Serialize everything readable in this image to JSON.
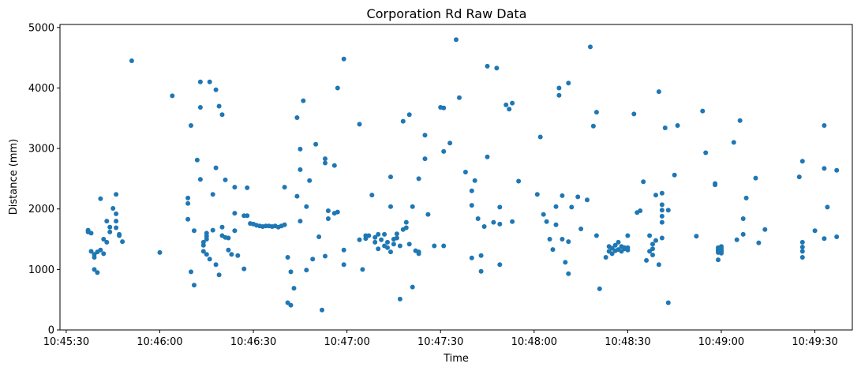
{
  "chart_data": {
    "type": "scatter",
    "title": "Corporation Rd Raw Data",
    "xlabel": "Time",
    "ylabel": "Distance (mm)",
    "marker_color": "#1f77b4",
    "x_ticks": [
      "10:45:30",
      "10:46:00",
      "10:46:30",
      "10:47:00",
      "10:47:30",
      "10:48:00",
      "10:48:30",
      "10:49:00",
      "10:49:30"
    ],
    "y_ticks": [
      "0",
      "1000",
      "2000",
      "3000",
      "4000",
      "5000"
    ],
    "xlim": [
      "10:45:28",
      "10:49:42"
    ],
    "ylim": [
      0,
      5050
    ],
    "points": [
      [
        "10:45:37",
        1650
      ],
      [
        "10:45:37",
        1620
      ],
      [
        "10:45:38",
        1600
      ],
      [
        "10:45:38",
        1300
      ],
      [
        "10:45:39",
        1200
      ],
      [
        "10:45:39",
        1000
      ],
      [
        "10:45:39",
        1250
      ],
      [
        "10:45:40",
        1290
      ],
      [
        "10:45:40",
        950
      ],
      [
        "10:45:41",
        2170
      ],
      [
        "10:45:41",
        1320
      ],
      [
        "10:45:42",
        1500
      ],
      [
        "10:45:42",
        1260
      ],
      [
        "10:45:43",
        1450
      ],
      [
        "10:45:43",
        1800
      ],
      [
        "10:45:44",
        1700
      ],
      [
        "10:45:44",
        1620
      ],
      [
        "10:45:45",
        2010
      ],
      [
        "10:45:46",
        1800
      ],
      [
        "10:45:46",
        1920
      ],
      [
        "10:45:46",
        2240
      ],
      [
        "10:45:46",
        1690
      ],
      [
        "10:45:47",
        1580
      ],
      [
        "10:45:47",
        1560
      ],
      [
        "10:45:48",
        1460
      ],
      [
        "10:45:51",
        4450
      ],
      [
        "10:46:00",
        1280
      ],
      [
        "10:46:04",
        3870
      ],
      [
        "10:46:09",
        2180
      ],
      [
        "10:46:09",
        2090
      ],
      [
        "10:46:09",
        1830
      ],
      [
        "10:46:10",
        3380
      ],
      [
        "10:46:10",
        960
      ],
      [
        "10:46:11",
        740
      ],
      [
        "10:46:11",
        1640
      ],
      [
        "10:46:12",
        2810
      ],
      [
        "10:46:13",
        4100
      ],
      [
        "10:46:13",
        3680
      ],
      [
        "10:46:13",
        2490
      ],
      [
        "10:46:14",
        1400
      ],
      [
        "10:46:14",
        1300
      ],
      [
        "10:46:14",
        1450
      ],
      [
        "10:46:15",
        1600
      ],
      [
        "10:46:15",
        1500
      ],
      [
        "10:46:15",
        1550
      ],
      [
        "10:46:15",
        1250
      ],
      [
        "10:46:16",
        1170
      ],
      [
        "10:46:16",
        4100
      ],
      [
        "10:46:17",
        2240
      ],
      [
        "10:46:17",
        1650
      ],
      [
        "10:46:18",
        3970
      ],
      [
        "10:46:18",
        2680
      ],
      [
        "10:46:18",
        1080
      ],
      [
        "10:46:19",
        3700
      ],
      [
        "10:46:19",
        910
      ],
      [
        "10:46:20",
        3560
      ],
      [
        "10:46:20",
        1700
      ],
      [
        "10:46:20",
        1560
      ],
      [
        "10:46:21",
        2480
      ],
      [
        "10:46:21",
        1530
      ],
      [
        "10:46:22",
        1320
      ],
      [
        "10:46:22",
        1520
      ],
      [
        "10:46:23",
        1250
      ],
      [
        "10:46:24",
        2360
      ],
      [
        "10:46:24",
        1930
      ],
      [
        "10:46:24",
        1640
      ],
      [
        "10:46:25",
        1230
      ],
      [
        "10:46:27",
        1890
      ],
      [
        "10:46:27",
        1010
      ],
      [
        "10:46:28",
        1890
      ],
      [
        "10:46:28",
        2350
      ],
      [
        "10:46:29",
        1760
      ],
      [
        "10:46:30",
        1750
      ],
      [
        "10:46:31",
        1730
      ],
      [
        "10:46:32",
        1720
      ],
      [
        "10:46:33",
        1710
      ],
      [
        "10:46:34",
        1720
      ],
      [
        "10:46:35",
        1720
      ],
      [
        "10:46:36",
        1710
      ],
      [
        "10:46:37",
        1720
      ],
      [
        "10:46:38",
        1700
      ],
      [
        "10:46:39",
        1720
      ],
      [
        "10:46:40",
        1740
      ],
      [
        "10:46:40",
        2360
      ],
      [
        "10:46:41",
        1200
      ],
      [
        "10:46:41",
        450
      ],
      [
        "10:46:42",
        410
      ],
      [
        "10:46:42",
        960
      ],
      [
        "10:46:43",
        690
      ],
      [
        "10:46:44",
        3510
      ],
      [
        "10:46:44",
        2210
      ],
      [
        "10:46:45",
        2990
      ],
      [
        "10:46:45",
        2650
      ],
      [
        "10:46:45",
        1800
      ],
      [
        "10:46:46",
        3790
      ],
      [
        "10:46:47",
        2040
      ],
      [
        "10:46:47",
        990
      ],
      [
        "10:46:48",
        2470
      ],
      [
        "10:46:49",
        1170
      ],
      [
        "10:46:50",
        3070
      ],
      [
        "10:46:51",
        1540
      ],
      [
        "10:46:52",
        330
      ],
      [
        "10:46:53",
        2830
      ],
      [
        "10:46:53",
        2760
      ],
      [
        "10:46:53",
        1220
      ],
      [
        "10:46:54",
        1970
      ],
      [
        "10:46:54",
        1840
      ],
      [
        "10:46:56",
        2720
      ],
      [
        "10:46:56",
        1930
      ],
      [
        "10:46:57",
        1950
      ],
      [
        "10:46:57",
        4000
      ],
      [
        "10:46:59",
        4480
      ],
      [
        "10:46:59",
        1320
      ],
      [
        "10:46:59",
        1080
      ],
      [
        "10:47:04",
        3400
      ],
      [
        "10:47:04",
        1490
      ],
      [
        "10:47:05",
        1000
      ],
      [
        "10:47:06",
        1510
      ],
      [
        "10:47:06",
        1560
      ],
      [
        "10:47:07",
        1560
      ],
      [
        "10:47:08",
        2230
      ],
      [
        "10:47:09",
        1450
      ],
      [
        "10:47:09",
        1530
      ],
      [
        "10:47:10",
        1580
      ],
      [
        "10:47:10",
        1340
      ],
      [
        "10:47:11",
        1490
      ],
      [
        "10:47:12",
        1390
      ],
      [
        "10:47:12",
        1580
      ],
      [
        "10:47:13",
        1360
      ],
      [
        "10:47:13",
        1450
      ],
      [
        "10:47:14",
        1290
      ],
      [
        "10:47:14",
        2530
      ],
      [
        "10:47:14",
        2040
      ],
      [
        "10:47:15",
        1420
      ],
      [
        "10:47:15",
        1500
      ],
      [
        "10:47:16",
        1520
      ],
      [
        "10:47:16",
        1590
      ],
      [
        "10:47:17",
        1390
      ],
      [
        "10:47:17",
        510
      ],
      [
        "10:47:18",
        3450
      ],
      [
        "10:47:18",
        1660
      ],
      [
        "10:47:19",
        1780
      ],
      [
        "10:47:19",
        1690
      ],
      [
        "10:47:20",
        3560
      ],
      [
        "10:47:20",
        1420
      ],
      [
        "10:47:21",
        710
      ],
      [
        "10:47:21",
        2040
      ],
      [
        "10:47:22",
        1310
      ],
      [
        "10:47:23",
        2500
      ],
      [
        "10:47:23",
        1290
      ],
      [
        "10:47:23",
        1260
      ],
      [
        "10:47:25",
        3220
      ],
      [
        "10:47:25",
        2830
      ],
      [
        "10:47:26",
        1910
      ],
      [
        "10:47:28",
        1390
      ],
      [
        "10:47:30",
        3680
      ],
      [
        "10:47:31",
        3670
      ],
      [
        "10:47:31",
        2950
      ],
      [
        "10:47:31",
        1390
      ],
      [
        "10:47:33",
        3090
      ],
      [
        "10:47:35",
        4800
      ],
      [
        "10:47:36",
        3840
      ],
      [
        "10:47:38",
        2610
      ],
      [
        "10:47:40",
        2300
      ],
      [
        "10:47:40",
        2060
      ],
      [
        "10:47:40",
        1190
      ],
      [
        "10:47:41",
        2470
      ],
      [
        "10:47:42",
        1840
      ],
      [
        "10:47:43",
        1230
      ],
      [
        "10:47:43",
        970
      ],
      [
        "10:47:44",
        1710
      ],
      [
        "10:47:45",
        2860
      ],
      [
        "10:47:45",
        4360
      ],
      [
        "10:47:47",
        1780
      ],
      [
        "10:47:48",
        4330
      ],
      [
        "10:47:49",
        1750
      ],
      [
        "10:47:49",
        2030
      ],
      [
        "10:47:49",
        1080
      ],
      [
        "10:47:51",
        3720
      ],
      [
        "10:47:52",
        3650
      ],
      [
        "10:47:53",
        3750
      ],
      [
        "10:47:53",
        1790
      ],
      [
        "10:47:55",
        2460
      ],
      [
        "10:48:01",
        2240
      ],
      [
        "10:48:02",
        3190
      ],
      [
        "10:48:03",
        1910
      ],
      [
        "10:48:04",
        1790
      ],
      [
        "10:48:05",
        1500
      ],
      [
        "10:48:06",
        1330
      ],
      [
        "10:48:07",
        2040
      ],
      [
        "10:48:07",
        1740
      ],
      [
        "10:48:08",
        4000
      ],
      [
        "10:48:08",
        3880
      ],
      [
        "10:48:09",
        2220
      ],
      [
        "10:48:09",
        1500
      ],
      [
        "10:48:10",
        1120
      ],
      [
        "10:48:11",
        930
      ],
      [
        "10:48:11",
        4080
      ],
      [
        "10:48:11",
        1460
      ],
      [
        "10:48:12",
        2030
      ],
      [
        "10:48:14",
        2200
      ],
      [
        "10:48:15",
        1670
      ],
      [
        "10:48:17",
        2150
      ],
      [
        "10:48:18",
        4680
      ],
      [
        "10:48:19",
        3370
      ],
      [
        "10:48:20",
        3600
      ],
      [
        "10:48:20",
        1560
      ],
      [
        "10:48:21",
        680
      ],
      [
        "10:48:23",
        1200
      ],
      [
        "10:48:24",
        1300
      ],
      [
        "10:48:24",
        1380
      ],
      [
        "10:48:25",
        1260
      ],
      [
        "10:48:25",
        1350
      ],
      [
        "10:48:26",
        1310
      ],
      [
        "10:48:26",
        1400
      ],
      [
        "10:48:27",
        1330
      ],
      [
        "10:48:27",
        1450
      ],
      [
        "10:48:28",
        1380
      ],
      [
        "10:48:28",
        1300
      ],
      [
        "10:48:29",
        1360
      ],
      [
        "10:48:29",
        1340
      ],
      [
        "10:48:30",
        1360
      ],
      [
        "10:48:30",
        1320
      ],
      [
        "10:48:30",
        1560
      ],
      [
        "10:48:32",
        3570
      ],
      [
        "10:48:33",
        1940
      ],
      [
        "10:48:34",
        1970
      ],
      [
        "10:48:35",
        2450
      ],
      [
        "10:48:36",
        1150
      ],
      [
        "10:48:37",
        1560
      ],
      [
        "10:48:37",
        1300
      ],
      [
        "10:48:38",
        1340
      ],
      [
        "10:48:38",
        1240
      ],
      [
        "10:48:38",
        1420
      ],
      [
        "10:48:39",
        1480
      ],
      [
        "10:48:39",
        2230
      ],
      [
        "10:48:40",
        1080
      ],
      [
        "10:48:40",
        3940
      ],
      [
        "10:48:41",
        2260
      ],
      [
        "10:48:41",
        2070
      ],
      [
        "10:48:41",
        1980
      ],
      [
        "10:48:41",
        1880
      ],
      [
        "10:48:41",
        1780
      ],
      [
        "10:48:41",
        1520
      ],
      [
        "10:48:42",
        3340
      ],
      [
        "10:48:43",
        450
      ],
      [
        "10:48:43",
        1980
      ],
      [
        "10:48:45",
        2560
      ],
      [
        "10:48:46",
        3380
      ],
      [
        "10:48:52",
        1550
      ],
      [
        "10:48:54",
        3620
      ],
      [
        "10:48:55",
        2930
      ],
      [
        "10:48:58",
        2420
      ],
      [
        "10:48:58",
        2400
      ],
      [
        "10:48:59",
        1160
      ],
      [
        "10:48:59",
        1280
      ],
      [
        "10:48:59",
        1310
      ],
      [
        "10:48:59",
        1330
      ],
      [
        "10:48:59",
        1360
      ],
      [
        "10:49:00",
        1270
      ],
      [
        "10:49:00",
        1300
      ],
      [
        "10:49:00",
        1350
      ],
      [
        "10:49:00",
        1380
      ],
      [
        "10:49:00",
        1320
      ],
      [
        "10:49:04",
        3100
      ],
      [
        "10:49:05",
        1490
      ],
      [
        "10:49:06",
        3460
      ],
      [
        "10:49:07",
        1580
      ],
      [
        "10:49:07",
        1840
      ],
      [
        "10:49:08",
        2180
      ],
      [
        "10:49:11",
        2510
      ],
      [
        "10:49:12",
        1440
      ],
      [
        "10:49:14",
        1660
      ],
      [
        "10:49:25",
        2530
      ],
      [
        "10:49:26",
        2790
      ],
      [
        "10:49:26",
        1450
      ],
      [
        "10:49:26",
        1370
      ],
      [
        "10:49:26",
        1300
      ],
      [
        "10:49:26",
        1200
      ],
      [
        "10:49:30",
        1640
      ],
      [
        "10:49:33",
        3380
      ],
      [
        "10:49:33",
        2670
      ],
      [
        "10:49:33",
        1510
      ],
      [
        "10:49:34",
        2030
      ],
      [
        "10:49:37",
        2640
      ],
      [
        "10:49:37",
        1540
      ]
    ]
  }
}
